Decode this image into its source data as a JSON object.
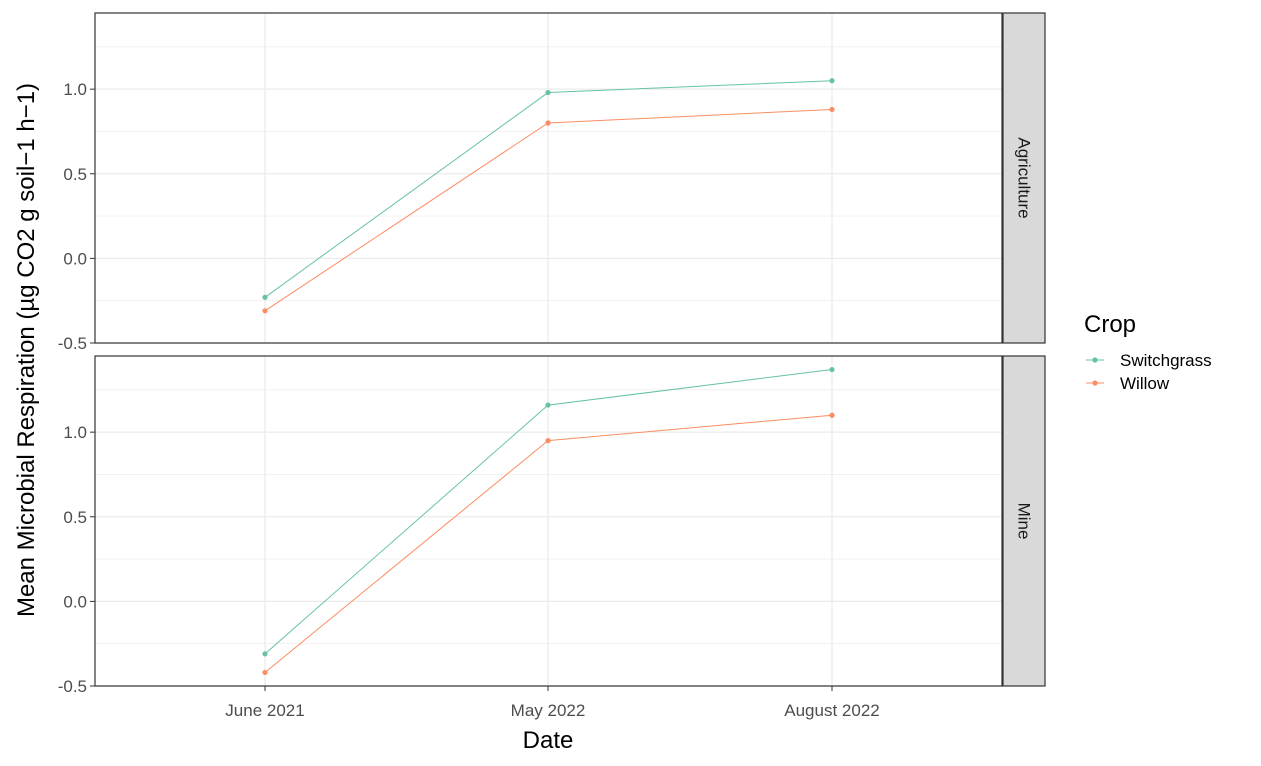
{
  "chart_data": {
    "type": "line",
    "xlabel": "Date",
    "ylabel": "Mean Microbial Respiration (µg CO2 g soil−1 h−1)",
    "categories": [
      "June 2021",
      "May 2022",
      "August 2022"
    ],
    "ylim": [
      -0.5,
      1.45
    ],
    "yticks": [
      -0.5,
      0.0,
      0.5,
      1.0
    ],
    "ytick_labels": [
      "-0.5",
      "0.0",
      "0.5",
      "1.0"
    ],
    "grid": true,
    "legend": {
      "title": "Crop",
      "position": "right",
      "entries": [
        {
          "name": "Switchgrass",
          "color": "#66c2a5"
        },
        {
          "name": "Willow",
          "color": "#fc8d62"
        }
      ]
    },
    "facets": [
      {
        "label": "Agriculture",
        "series": [
          {
            "name": "Switchgrass",
            "color": "#66c2a5",
            "values": [
              -0.23,
              0.98,
              1.05
            ]
          },
          {
            "name": "Willow",
            "color": "#fc8d62",
            "values": [
              -0.31,
              0.8,
              0.88
            ]
          }
        ]
      },
      {
        "label": "Mine",
        "series": [
          {
            "name": "Switchgrass",
            "color": "#66c2a5",
            "values": [
              -0.31,
              1.16,
              1.37
            ]
          },
          {
            "name": "Willow",
            "color": "#fc8d62",
            "values": [
              -0.42,
              0.95,
              1.1
            ]
          }
        ]
      }
    ]
  }
}
